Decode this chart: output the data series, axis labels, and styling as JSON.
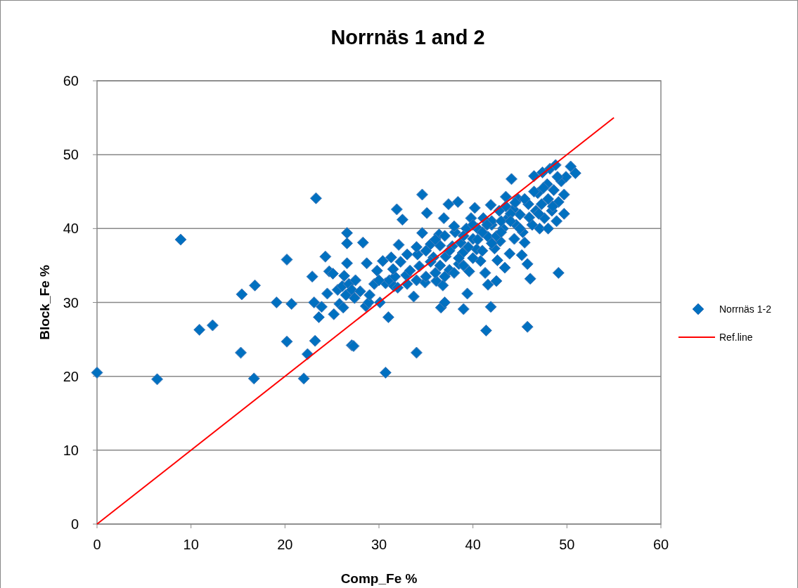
{
  "chart_data": {
    "type": "scatter",
    "title": "Norrnäs 1 and 2",
    "xlabel": "Comp_Fe  %",
    "ylabel": "Block_Fe %",
    "xlim": [
      0,
      60
    ],
    "ylim": [
      0,
      60
    ],
    "xticks": [
      0,
      10,
      20,
      30,
      40,
      50,
      60
    ],
    "yticks": [
      0,
      10,
      20,
      30,
      40,
      50,
      60
    ],
    "grid": "y",
    "legend": "right",
    "series": [
      {
        "name": "Norrnäs 1-2",
        "marker": "diamond",
        "color": "#0070c0",
        "x": [
          0,
          6.4,
          8.9,
          10.9,
          12.3,
          15.3,
          15.4,
          16.8,
          16.7,
          19.1,
          20.2,
          20.2,
          20.7,
          22.0,
          22.4,
          22.9,
          23.1,
          23.2,
          23.3,
          23.6,
          23.9,
          24.3,
          24.5,
          24.7,
          25.1,
          25.2,
          25.6,
          25.8,
          26.1,
          26.2,
          26.3,
          26.5,
          26.6,
          26.6,
          26.6,
          26.8,
          27.1,
          27.1,
          27.3,
          27.4,
          28.3,
          28.6,
          28.7,
          28.9,
          29.5,
          29.8,
          30.1,
          30.4,
          30.7,
          30.7,
          31.0,
          31.1,
          31.3,
          31.6,
          31.7,
          31.9,
          32.1,
          32.3,
          32.5,
          32.9,
          33.3,
          33.7,
          34.0,
          34.1,
          34.3,
          34.6,
          34.6,
          34.9,
          35.1,
          35.5,
          35.8,
          36.1,
          36.4,
          36.5,
          36.6,
          36.8,
          36.9,
          37.0,
          37.1,
          37.4,
          37.5,
          37.8,
          38.1,
          38.4,
          38.5,
          38.7,
          38.9,
          39.0,
          39.3,
          39.4,
          39.6,
          39.8,
          40.0,
          40.2,
          40.4,
          40.5,
          40.8,
          41.1,
          41.3,
          41.4,
          41.6,
          41.6,
          41.9,
          41.9,
          42.0,
          42.3,
          42.5,
          42.6,
          42.8,
          42.9,
          43.2,
          43.4,
          43.5,
          43.7,
          43.9,
          44.1,
          44.3,
          44.4,
          44.6,
          44.8,
          45.0,
          45.2,
          45.3,
          45.5,
          45.8,
          45.8,
          45.9,
          46.1,
          46.3,
          46.5,
          46.7,
          46.9,
          47.1,
          47.3,
          47.4,
          47.6,
          47.9,
          48.0,
          48.2,
          48.4,
          48.6,
          48.8,
          48.9,
          49.1,
          49.1,
          49.4,
          49.7,
          49.7,
          49.9,
          50.4,
          50.9,
          35,
          36,
          37,
          38,
          39,
          40,
          41,
          42,
          43,
          44,
          33,
          34,
          35.5,
          36.5,
          37.5,
          38.5,
          39.5,
          40.5,
          41.5,
          42.5,
          43.5,
          44.5,
          45.5,
          46.5,
          47.5,
          48,
          45,
          46,
          47,
          48.5,
          49,
          44,
          43,
          42,
          41,
          40,
          39,
          38,
          37,
          36,
          35,
          34,
          33,
          32,
          31.5,
          30,
          29,
          28,
          27.5
        ],
        "values": [
          20.5,
          19.6,
          38.5,
          26.3,
          26.9,
          23.2,
          31.1,
          32.3,
          19.7,
          30.0,
          35.8,
          24.7,
          29.8,
          19.7,
          23.0,
          33.5,
          30.0,
          24.8,
          44.1,
          28.0,
          29.4,
          36.2,
          31.2,
          34.2,
          33.9,
          28.4,
          31.7,
          29.8,
          32.2,
          29.3,
          33.6,
          31.0,
          39.4,
          38.0,
          35.3,
          32.5,
          31.7,
          24.2,
          24.1,
          30.6,
          38.1,
          29.5,
          35.3,
          30.0,
          32.5,
          34.3,
          30.0,
          35.6,
          20.5,
          32.6,
          28.0,
          33.0,
          36.1,
          32.2,
          33.5,
          42.6,
          37.8,
          35.5,
          41.2,
          33.7,
          34.3,
          30.8,
          23.2,
          36.5,
          34.9,
          39.4,
          44.6,
          32.7,
          42.1,
          37.9,
          36.1,
          32.9,
          39.2,
          37.7,
          29.3,
          32.3,
          41.4,
          30.0,
          36.2,
          43.3,
          34.4,
          37.6,
          39.5,
          43.6,
          35.2,
          38.1,
          36.7,
          29.1,
          40.0,
          31.2,
          34.2,
          41.4,
          38.6,
          42.8,
          37.2,
          40.0,
          35.6,
          41.4,
          34.0,
          26.2,
          38.9,
          32.4,
          43.2,
          29.4,
          40.5,
          37.3,
          32.9,
          35.7,
          42.4,
          38.3,
          40.0,
          34.7,
          44.3,
          41.4,
          36.6,
          46.7,
          42.6,
          38.6,
          40.5,
          44.0,
          41.9,
          36.4,
          39.5,
          38.1,
          26.7,
          35.2,
          43.3,
          33.2,
          40.5,
          47.1,
          42.4,
          44.8,
          40.0,
          43.3,
          47.6,
          41.4,
          46.0,
          40.0,
          48.1,
          42.4,
          45.2,
          48.6,
          41.0,
          43.6,
          34.0,
          46.4,
          42.0,
          44.6,
          47.0,
          48.4,
          47.5,
          37,
          38.5,
          39,
          40.3,
          39,
          40.5,
          39.5,
          41,
          41,
          42,
          36.5,
          37.5,
          35.5,
          35,
          37,
          36,
          37.5,
          38.5,
          40.5,
          39,
          43,
          43.5,
          44,
          45,
          45.5,
          44,
          40,
          41.5,
          42,
          43,
          47,
          41,
          39.5,
          38,
          37,
          36,
          35,
          34,
          33.5,
          34,
          33.5,
          33,
          32.5,
          32,
          34.5,
          33,
          31,
          31.5,
          33
        ]
      },
      {
        "name": "Ref.line",
        "type": "line",
        "marker": "none",
        "line_style": "solid",
        "color": "#ff0000",
        "x": [
          0,
          55
        ],
        "values": [
          0,
          55
        ]
      }
    ]
  }
}
